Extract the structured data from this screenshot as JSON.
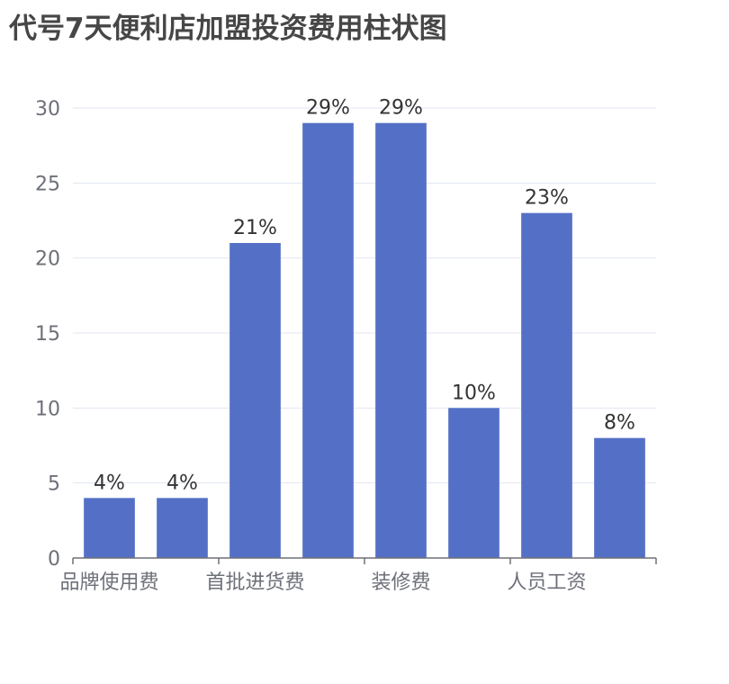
{
  "chart_data": {
    "type": "bar",
    "title": "代号7天便利店加盟投资费用柱状图",
    "xlabel": "",
    "ylabel": "",
    "ylim": [
      0,
      30
    ],
    "yticks": [
      0,
      5,
      10,
      15,
      20,
      25,
      30
    ],
    "grid": true,
    "categories": [
      "品牌使用费",
      "",
      "首批进货费",
      "",
      "装修费",
      "",
      "人员工资",
      ""
    ],
    "values": [
      4,
      4,
      21,
      29,
      29,
      10,
      23,
      8
    ],
    "data_labels": [
      "4%",
      "4%",
      "21%",
      "29%",
      "29%",
      "10%",
      "23%",
      "8%"
    ],
    "bar_color": "#5470c6"
  }
}
